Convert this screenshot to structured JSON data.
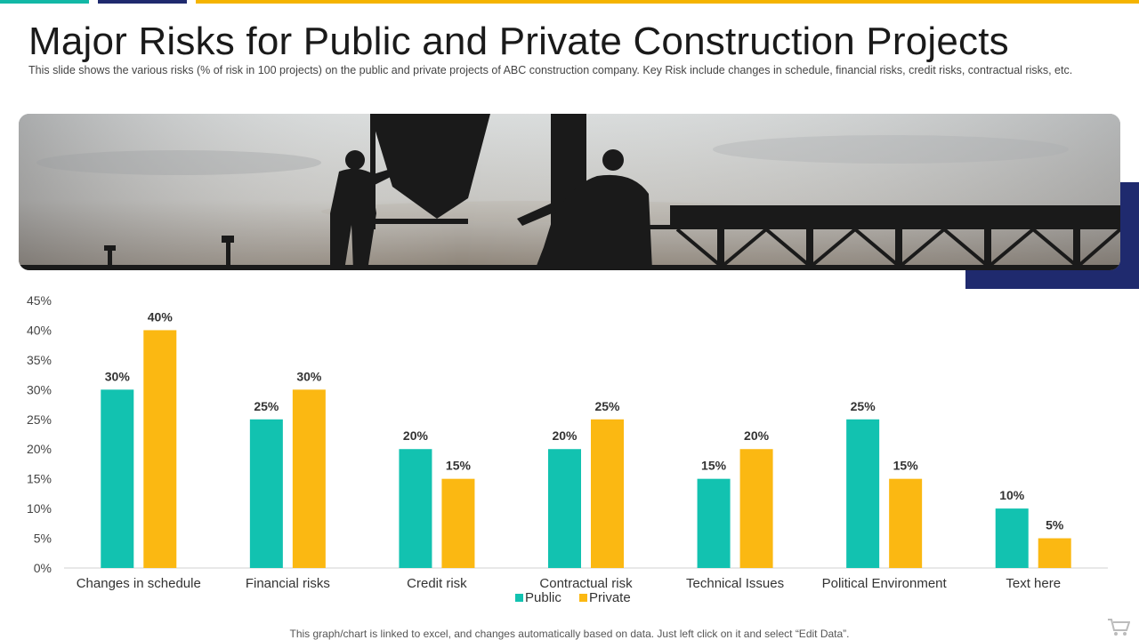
{
  "title": "Major Risks for Public and Private Construction Projects",
  "subtitle": "This slide shows the various  risks (% of risk in 100 projects) on the public and private  projects of ABC construction company. Key Risk include changes in schedule, financial risks, credit risks, contractual risks, etc.",
  "banner": {
    "icon": "construction-silhouette-photo"
  },
  "footer": "This graph/chart is linked to excel,  and changes automatically based on data. Just left click on it and select “Edit Data”.",
  "colors": {
    "public": "#12c2b0",
    "private": "#fbb812",
    "accent_navy": "#1f2a6e",
    "accent_yellow": "#f5b400",
    "accent_teal": "#12b8a6"
  },
  "chart_data": {
    "type": "bar",
    "categories": [
      "Changes in schedule",
      "Financial risks",
      "Credit risk",
      "Contractual risk",
      "Technical Issues",
      "Political Environment",
      "Text here"
    ],
    "series": [
      {
        "name": "Public",
        "values": [
          30,
          25,
          20,
          20,
          15,
          25,
          10
        ],
        "labels": [
          "30%",
          "25%",
          "20%",
          "20%",
          "15%",
          "25%",
          "10%"
        ]
      },
      {
        "name": "Private",
        "values": [
          40,
          30,
          15,
          25,
          20,
          15,
          5
        ],
        "labels": [
          "40%",
          "30%",
          "15%",
          "25%",
          "20%",
          "15%",
          "5%"
        ]
      }
    ],
    "yticks": [
      "0%",
      "5%",
      "10%",
      "15%",
      "20%",
      "25%",
      "30%",
      "35%",
      "40%",
      "45%"
    ],
    "ylim": [
      0,
      45
    ],
    "grid": false,
    "legend": "bottom"
  }
}
